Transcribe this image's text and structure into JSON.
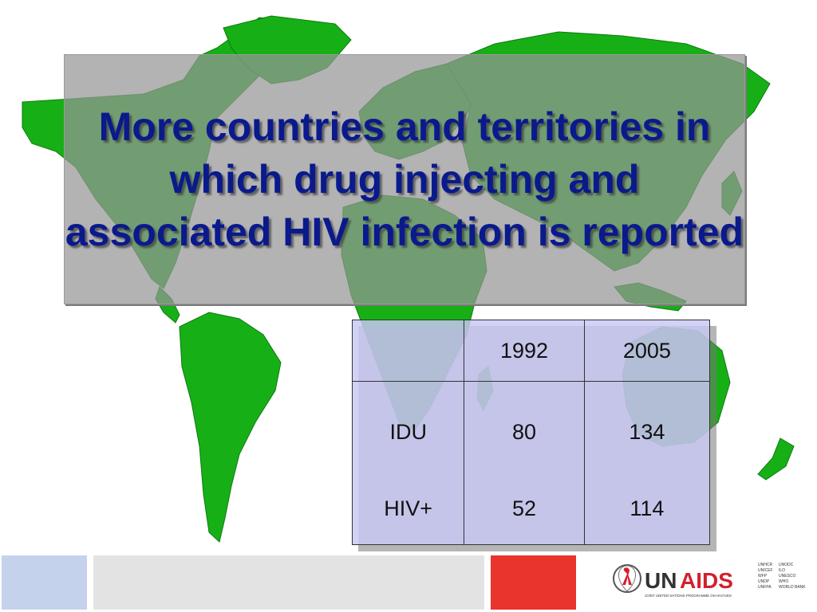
{
  "slide": {
    "title": "More countries and territories in which drug injecting and associated HIV infection is reported"
  },
  "table": {
    "headers": [
      "",
      "1992",
      "2005"
    ],
    "rows": [
      {
        "label": "IDU",
        "values": [
          "80",
          "134"
        ]
      },
      {
        "label": "HIV+",
        "values": [
          "52",
          "114"
        ]
      }
    ]
  },
  "logo": {
    "brand_un": "UN",
    "brand_aids": "AIDS",
    "tagline": "JOINT UNITED NATIONS PROGRAMME ON HIV/AIDS",
    "cosponsors_left": [
      "UNHCR",
      "UNICEF",
      "WFP",
      "UNDP",
      "UNFPA"
    ],
    "cosponsors_right": [
      "UNODC",
      "ILO",
      "UNESCO",
      "WHO",
      "WORLD BANK"
    ]
  },
  "colors": {
    "title_text": "#0a1a8c",
    "map_land": "#16b016",
    "footer_blue": "#c5d2ec",
    "footer_gray": "#e3e3e3",
    "footer_red": "#e8342c",
    "logo_red": "#d3202e"
  }
}
